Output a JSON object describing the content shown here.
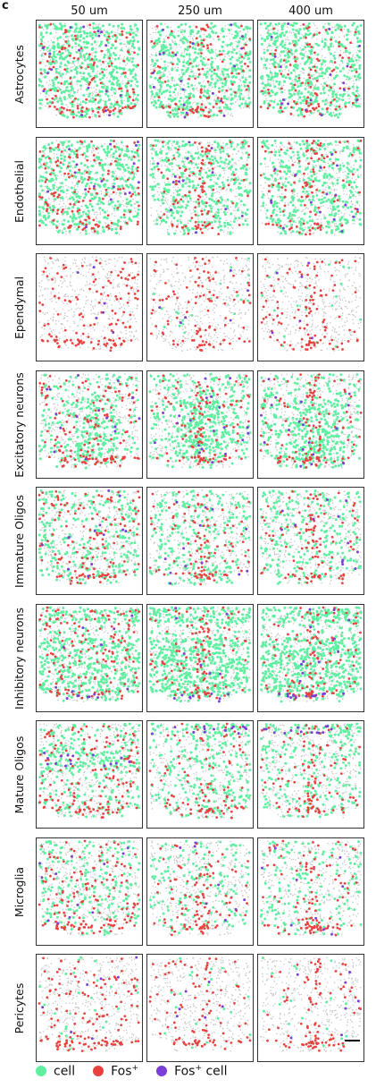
{
  "panel_letter": "c",
  "columns": [
    "50 um",
    "250 um",
    "400 um"
  ],
  "rows": [
    "Astrocytes",
    "Endothelial",
    "Ependymal",
    "Excitatory neurons",
    "Immature Oligos",
    "Inhibitory neurons",
    "Mature Oligos",
    "Microglia",
    "Pericytes"
  ],
  "legend": [
    {
      "label": "cell",
      "sup": "",
      "color": "#5ef0a0"
    },
    {
      "label": "Fos",
      "sup": "+",
      "color": "#e8423f"
    },
    {
      "label": "Fos",
      "sup": "+",
      "suffix": " cell",
      "color": "#7a3fd6"
    }
  ],
  "colors": {
    "background_cell": "#c8c8c8",
    "cell": "#5ef0a0",
    "fos": "#e8423f",
    "fos_cell": "#7a3fd6"
  },
  "density": {
    "Astrocytes": [
      0.85,
      0.75,
      0.75
    ],
    "Endothelial": [
      0.7,
      0.6,
      0.6
    ],
    "Ependymal": [
      0.0,
      0.03,
      0.03
    ],
    "Excitatory neurons": [
      0.5,
      0.7,
      0.7
    ],
    "Immature Oligos": [
      0.45,
      0.4,
      0.4
    ],
    "Inhibitory neurons": [
      0.8,
      1.0,
      1.0
    ],
    "Mature Oligos": [
      0.5,
      0.45,
      0.4
    ],
    "Microglia": [
      0.35,
      0.25,
      0.25
    ],
    "Pericytes": [
      0.04,
      0.03,
      0.03
    ]
  }
}
